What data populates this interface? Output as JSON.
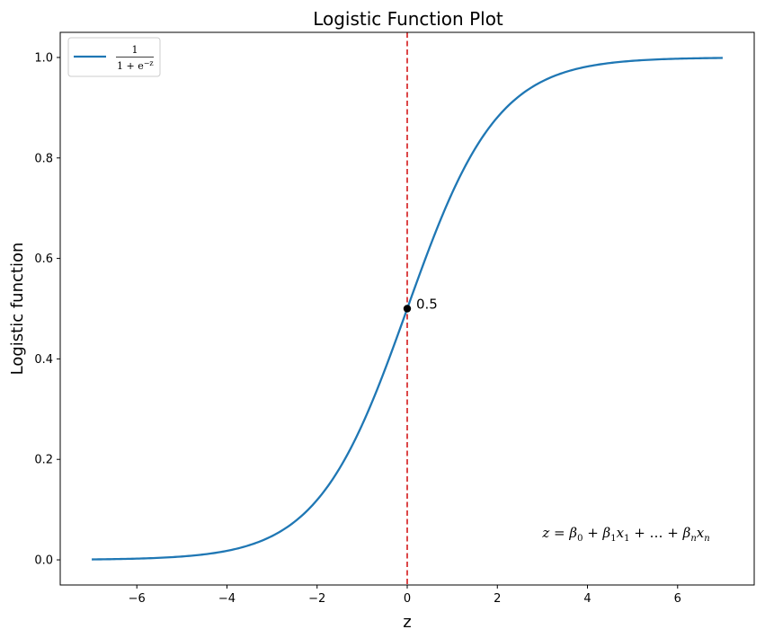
{
  "chart_data": {
    "type": "line",
    "title": "Logistic Function Plot",
    "xlabel": "z",
    "ylabel": "Logistic function",
    "xlim": [
      -7.7,
      7.7
    ],
    "ylim": [
      -0.05,
      1.05
    ],
    "xticks": [
      -6,
      -4,
      -2,
      0,
      2,
      4,
      6
    ],
    "xtick_labels": [
      "−6",
      "−4",
      "−2",
      "0",
      "2",
      "4",
      "6"
    ],
    "yticks": [
      0.0,
      0.2,
      0.4,
      0.6,
      0.8,
      1.0
    ],
    "ytick_labels": [
      "0.0",
      "0.2",
      "0.4",
      "0.6",
      "0.8",
      "1.0"
    ],
    "grid": false,
    "legend_position": "top-left",
    "series": [
      {
        "name": "1 / (1 + e^(−z))",
        "legend_numerator": "1",
        "legend_denominator": "1 + e",
        "legend_exponent": "−z",
        "color": "#1f77b4",
        "x": [
          -7,
          -6.5,
          -6,
          -5.5,
          -5,
          -4.5,
          -4,
          -3.5,
          -3,
          -2.5,
          -2,
          -1.5,
          -1,
          -0.5,
          0,
          0.5,
          1,
          1.5,
          2,
          2.5,
          3,
          3.5,
          4,
          4.5,
          5,
          5.5,
          6,
          6.5,
          7
        ],
        "y": [
          0.0009,
          0.0015,
          0.0025,
          0.0041,
          0.0067,
          0.011,
          0.018,
          0.0293,
          0.0474,
          0.0759,
          0.1192,
          0.1824,
          0.2689,
          0.3775,
          0.5,
          0.6225,
          0.7311,
          0.8176,
          0.8808,
          0.9241,
          0.9526,
          0.9707,
          0.982,
          0.989,
          0.9933,
          0.9959,
          0.9975,
          0.9985,
          0.9991
        ]
      }
    ],
    "vertical_line": {
      "x": 0,
      "color": "#d62728",
      "style": "dashed"
    },
    "highlight_point": {
      "x": 0,
      "y": 0.5,
      "label": "0.5",
      "color": "#000000"
    },
    "annotation": {
      "text": "z = β0 + β1x1 + … + βnxn",
      "x": 3.0,
      "y": 0.05
    }
  }
}
